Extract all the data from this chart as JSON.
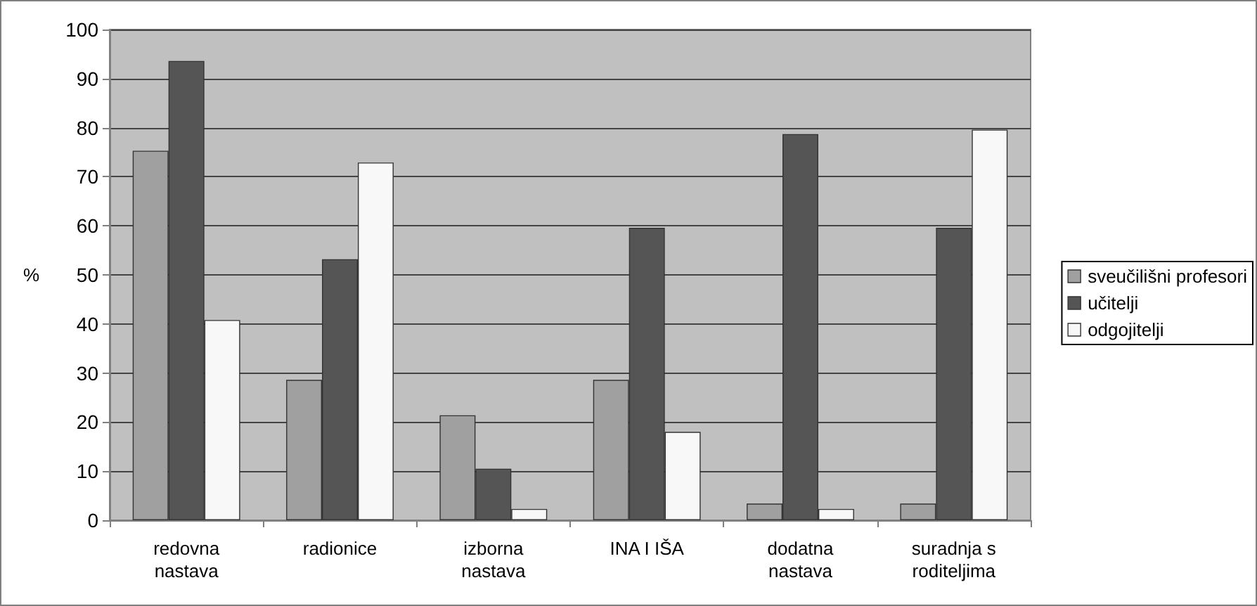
{
  "chart_data": {
    "type": "bar",
    "ylabel": "%",
    "categories": [
      "redovna\nnastava",
      "radionice",
      "izborna\nnastava",
      "INA I IŠA",
      "dodatna\nnastava",
      "suradnja s\nroditeljima"
    ],
    "series": [
      {
        "name": "sveučilišni profesori",
        "color": "#a0a0a0",
        "values": [
          75.3,
          28.6,
          21.4,
          28.6,
          3.4,
          3.4
        ]
      },
      {
        "name": "učitelji",
        "color": "#555555",
        "values": [
          93.6,
          53.2,
          10.5,
          59.6,
          78.7,
          59.6
        ]
      },
      {
        "name": "odgojitelji",
        "color": "#f8f8f8",
        "values": [
          40.8,
          72.9,
          2.3,
          18.0,
          2.3,
          79.6
        ]
      }
    ],
    "ylim": [
      0,
      100
    ],
    "yticks": [
      0,
      10,
      20,
      30,
      40,
      50,
      60,
      70,
      80,
      90,
      100
    ],
    "grid": "y",
    "legend": "right"
  }
}
